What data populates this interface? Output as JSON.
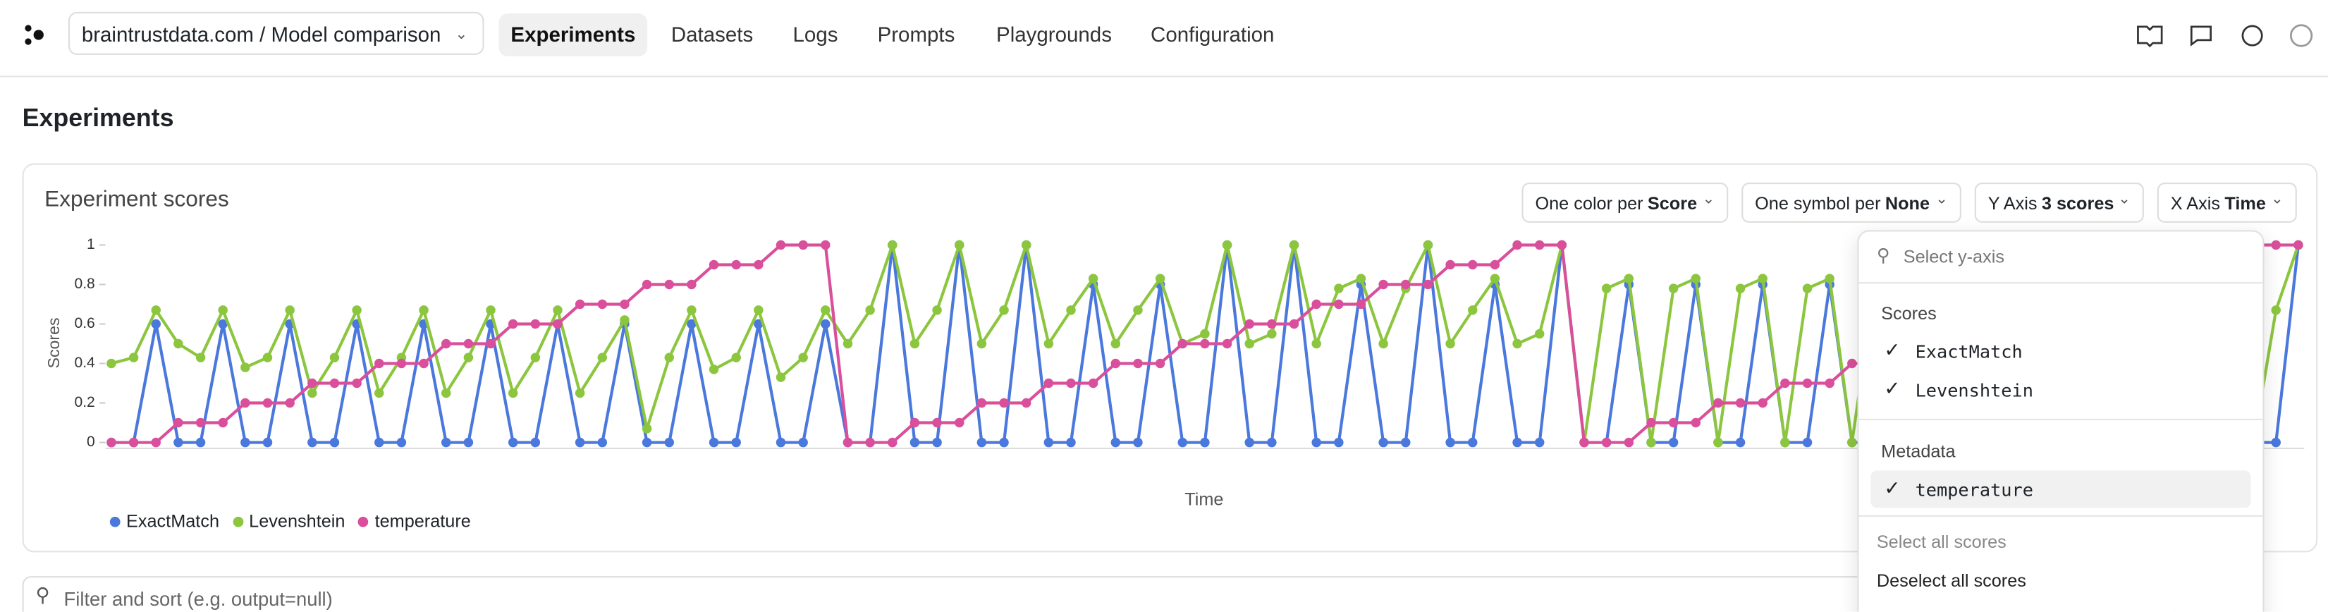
{
  "nav": {
    "project": "braintrustdata.com / Model comparison",
    "tabs": [
      "Experiments",
      "Datasets",
      "Logs",
      "Prompts",
      "Playgrounds",
      "Configuration"
    ]
  },
  "page_title": "Experiments",
  "chart_data": {
    "type": "line",
    "title": "Experiment scores",
    "xlabel": "Time",
    "ylabel": "Scores",
    "ylim": [
      0,
      1
    ],
    "yticks": [
      0,
      0.2,
      0.4,
      0.6,
      0.8,
      1
    ],
    "series": [
      {
        "name": "ExactMatch",
        "color": "#4a78dc",
        "values": [
          0,
          0,
          0.6,
          0,
          0,
          0.6,
          0,
          0,
          0.6,
          0,
          0,
          0.6,
          0,
          0,
          0.6,
          0,
          0,
          0.6,
          0,
          0,
          0.6,
          0,
          0,
          0.6,
          0,
          0,
          0.6,
          0,
          0,
          0.6,
          0,
          0,
          0.6,
          0,
          0,
          1,
          0,
          0,
          1,
          0,
          0,
          1,
          0,
          0,
          0.8,
          0,
          0,
          0.8,
          0,
          0,
          1,
          0,
          0,
          1,
          0,
          0,
          0.8,
          0,
          0,
          1,
          0,
          0,
          0.8,
          0,
          0,
          1,
          0,
          0,
          0.8,
          0,
          0,
          0.8,
          0,
          0,
          0.8,
          0,
          0,
          0.8,
          0,
          0,
          0.8,
          0,
          0,
          0.8,
          0,
          0,
          0.8,
          0,
          0,
          0.8,
          0,
          0,
          0.8,
          0,
          0,
          0.8,
          0,
          0,
          1
        ]
      },
      {
        "name": "Levenshtein",
        "color": "#8cc63f",
        "values": [
          0.4,
          0.43,
          0.67,
          0.5,
          0.43,
          0.67,
          0.38,
          0.43,
          0.67,
          0.25,
          0.43,
          0.67,
          0.25,
          0.43,
          0.67,
          0.25,
          0.43,
          0.67,
          0.25,
          0.43,
          0.67,
          0.25,
          0.43,
          0.62,
          0.07,
          0.43,
          0.67,
          0.37,
          0.43,
          0.67,
          0.33,
          0.43,
          0.67,
          0.5,
          0.67,
          1,
          0.5,
          0.67,
          1,
          0.5,
          0.67,
          1,
          0.5,
          0.67,
          0.83,
          0.5,
          0.67,
          0.83,
          0.5,
          0.55,
          1,
          0.5,
          0.55,
          1,
          0.5,
          0.78,
          0.83,
          0.5,
          0.78,
          1,
          0.5,
          0.67,
          0.83,
          0.5,
          0.55,
          1,
          0,
          0.78,
          0.83,
          0,
          0.78,
          0.83,
          0,
          0.78,
          0.83,
          0,
          0.78,
          0.83,
          0,
          0.78,
          0.83,
          0,
          0.78,
          0.83,
          0,
          0.78,
          0.83,
          0,
          0.78,
          0.83,
          0,
          0.78,
          0.83,
          0,
          0.78,
          0.83,
          0,
          0.67,
          1
        ]
      },
      {
        "name": "temperature",
        "color": "#d94f9b",
        "values": [
          0,
          0,
          0,
          0.1,
          0.1,
          0.1,
          0.2,
          0.2,
          0.2,
          0.3,
          0.3,
          0.3,
          0.4,
          0.4,
          0.4,
          0.5,
          0.5,
          0.5,
          0.6,
          0.6,
          0.6,
          0.7,
          0.7,
          0.7,
          0.8,
          0.8,
          0.8,
          0.9,
          0.9,
          0.9,
          1,
          1,
          1,
          0,
          0,
          0,
          0.1,
          0.1,
          0.1,
          0.2,
          0.2,
          0.2,
          0.3,
          0.3,
          0.3,
          0.4,
          0.4,
          0.4,
          0.5,
          0.5,
          0.5,
          0.6,
          0.6,
          0.6,
          0.7,
          0.7,
          0.7,
          0.8,
          0.8,
          0.8,
          0.9,
          0.9,
          0.9,
          1,
          1,
          1,
          0,
          0,
          0,
          0.1,
          0.1,
          0.1,
          0.2,
          0.2,
          0.2,
          0.3,
          0.3,
          0.3,
          0.4,
          0.4,
          0.4,
          0.5,
          0.5,
          0.5,
          0.6,
          0.6,
          0.6,
          0.7,
          0.7,
          0.7,
          0.8,
          0.8,
          0.8,
          0.9,
          0.9,
          0.9,
          1,
          1,
          1
        ]
      }
    ],
    "controls": [
      {
        "label": "One color per",
        "value": "Score"
      },
      {
        "label": "One symbol per",
        "value": "None"
      },
      {
        "label": "Y Axis",
        "value": "3 scores"
      },
      {
        "label": "X Axis",
        "value": "Time"
      }
    ]
  },
  "dropdown": {
    "search_placeholder": "Select y-axis",
    "groups": [
      {
        "title": "Scores",
        "items": [
          "ExactMatch",
          "Levenshtein"
        ]
      },
      {
        "title": "Metadata",
        "items": [
          "temperature"
        ]
      }
    ],
    "select_all": "Select all scores",
    "deselect_all": "Deselect all scores"
  },
  "filter_placeholder": "Filter and sort (e.g. output=null)"
}
